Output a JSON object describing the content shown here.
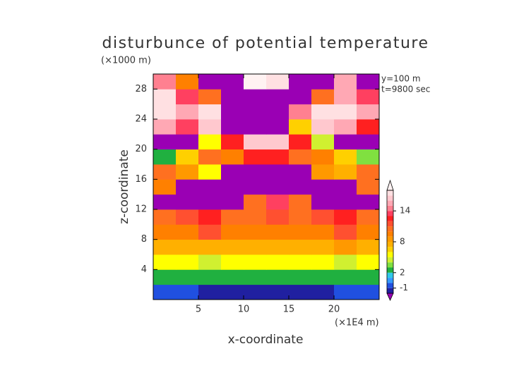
{
  "chart_data": {
    "type": "contour",
    "title": "disturbunce of potential temperature",
    "xlabel": "x-coordinate",
    "ylabel": "z-coordinate",
    "x_unit": "(×1E4 m)",
    "y_unit": "(×1000 m)",
    "annotations": [
      "y=100 m",
      "t=9800 sec"
    ],
    "xlim": [
      0,
      25
    ],
    "ylim": [
      0,
      30
    ],
    "xticks": [
      5,
      10,
      15,
      20
    ],
    "yticks": [
      4,
      8,
      12,
      16,
      20,
      24,
      28
    ],
    "x": [
      1.25,
      3.75,
      6.25,
      8.75,
      11.25,
      13.75,
      16.25,
      18.75,
      21.25,
      23.75
    ],
    "y": [
      1,
      3,
      5,
      7,
      9,
      11,
      13,
      15,
      17,
      19,
      21,
      23,
      25,
      27,
      29
    ],
    "z": [
      [
        -0.5,
        -0.5,
        -1.5,
        -1.5,
        -1.5,
        -1.5,
        -1.5,
        -1.5,
        -0.5,
        -0.5
      ],
      [
        2.5,
        2.5,
        2.5,
        2.5,
        2.5,
        2.5,
        2.5,
        2.5,
        2,
        2.5
      ],
      [
        5,
        5,
        4.5,
        5,
        5,
        5,
        5,
        5,
        4.5,
        5
      ],
      [
        7.5,
        7.5,
        7,
        7.5,
        7.5,
        7.5,
        7.5,
        7.5,
        8,
        7.5
      ],
      [
        9,
        9,
        11,
        9,
        9,
        9,
        9,
        9,
        11,
        9
      ],
      [
        10.5,
        11,
        12.5,
        10.5,
        10.5,
        11,
        10.5,
        11,
        12.5,
        10.5
      ],
      [
        -3,
        -3,
        -3,
        -3,
        10,
        13,
        10,
        -3,
        -3,
        -3
      ],
      [
        9,
        -3,
        -3,
        -3,
        -3,
        -3,
        -3,
        -3,
        -3,
        10
      ],
      [
        10,
        8,
        5,
        -3,
        -3,
        -3,
        -3,
        8,
        7,
        10
      ],
      [
        2,
        6,
        10,
        9,
        12,
        12,
        10,
        9,
        6,
        3
      ],
      [
        -3,
        -3,
        5,
        12,
        16,
        16,
        12,
        4,
        -3,
        -3
      ],
      [
        15,
        13,
        16,
        -3,
        -3,
        -3,
        6,
        16,
        15,
        12
      ],
      [
        17,
        15,
        17,
        -3,
        -3,
        -3,
        14,
        17,
        17,
        15
      ],
      [
        17,
        13,
        10,
        -3,
        -3,
        -3,
        -3,
        10,
        15,
        13
      ],
      [
        14,
        9,
        -3,
        -3,
        18,
        17,
        -3,
        -3,
        15,
        -3
      ]
    ],
    "levels": [
      -2,
      -1,
      0,
      1,
      2,
      3,
      4,
      5,
      6,
      7,
      8,
      9,
      10,
      11,
      12,
      13,
      14,
      15,
      16,
      17,
      18
    ],
    "colorbar_ticks": [
      -1,
      2,
      8,
      14
    ],
    "colors": [
      "#9a00b4",
      "#2020a0",
      "#2050e0",
      "#3399ff",
      "#30c8e8",
      "#20b040",
      "#80e040",
      "#d0f030",
      "#ffff00",
      "#ffd000",
      "#ffb000",
      "#ff9900",
      "#ff8000",
      "#ff7020",
      "#ff5030",
      "#ff2020",
      "#ff4060",
      "#ff8090",
      "#ffa8b4",
      "#ffc8ce",
      "#ffe0e2",
      "#fff2f2"
    ]
  }
}
